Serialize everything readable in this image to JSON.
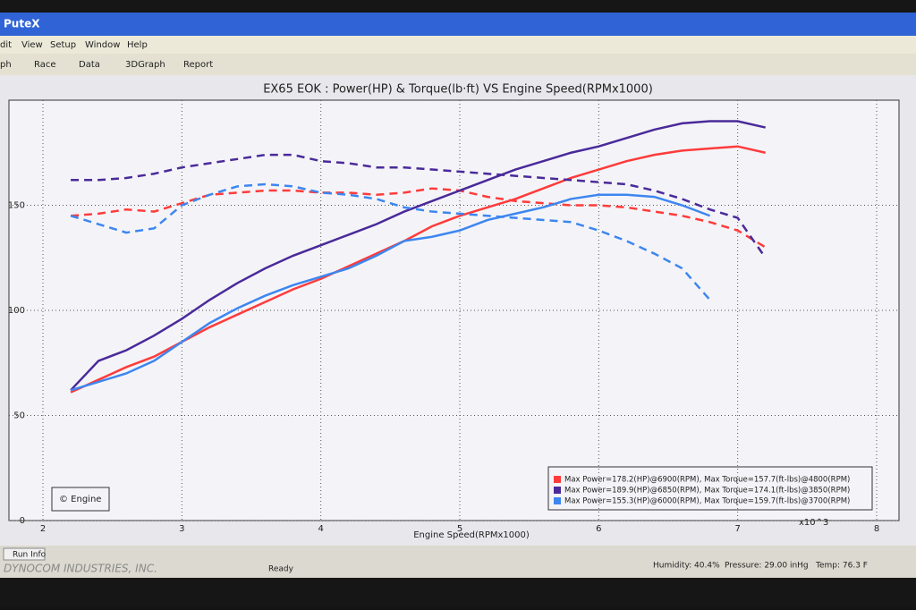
{
  "window": {
    "title": "PuteX",
    "menu": [
      "dit",
      "View",
      "Setup",
      "Window",
      "Help"
    ],
    "toolbar": [
      "ph",
      "Race",
      "Data",
      "3DGraph",
      "Report"
    ]
  },
  "chart_data": {
    "type": "line",
    "title": "EX65 EOK : Power(HP) & Torque(lb·ft) VS Engine Speed(RPMx1000)",
    "x_label": "Engine Speed(RPMx1000)",
    "x_multiplier": "x10^3",
    "watermark": "© Engine",
    "xlim": [
      2,
      8
    ],
    "xticks": [
      2,
      3,
      4,
      5,
      6,
      7,
      8
    ],
    "ylim": [
      0,
      200
    ],
    "yticks": [
      0,
      50,
      100,
      150
    ],
    "grid": true,
    "legend": "lower right",
    "x": [
      2.2,
      2.4,
      2.6,
      2.8,
      3.0,
      3.2,
      3.4,
      3.6,
      3.8,
      4.0,
      4.2,
      4.4,
      4.6,
      4.8,
      5.0,
      5.2,
      5.4,
      5.6,
      5.8,
      6.0,
      6.2,
      6.4,
      6.6,
      6.8,
      7.0,
      7.2
    ],
    "series": [
      {
        "name": "Max Power=178.2(HP)@6900(RPM), Max Torque=157.7(ft-lbs)@4800(RPM)",
        "color": "#ff3b3b",
        "values": [
          61,
          67,
          73,
          78,
          85,
          92,
          98,
          104,
          110,
          115,
          121,
          127,
          133,
          140,
          145,
          149,
          153,
          158,
          163,
          167,
          171,
          174,
          176,
          177,
          178,
          175
        ],
        "torque": [
          145,
          146,
          148,
          147,
          151,
          155,
          156,
          157,
          157,
          156,
          156,
          155,
          156,
          158,
          157,
          154,
          152,
          151,
          150,
          150,
          149,
          147,
          145,
          142,
          138,
          130
        ]
      },
      {
        "name": "Max Power=189.9(HP)@6850(RPM), Max Torque=174.1(ft-lbs)@3850(RPM)",
        "color": "#4a2a9a",
        "values": [
          62,
          76,
          81,
          88,
          96,
          105,
          113,
          120,
          126,
          131,
          136,
          141,
          147,
          152,
          157,
          162,
          167,
          171,
          175,
          178,
          182,
          186,
          189,
          190,
          190,
          187
        ],
        "torque": [
          162,
          162,
          163,
          165,
          168,
          170,
          172,
          174,
          174,
          171,
          170,
          168,
          168,
          167,
          166,
          165,
          164,
          163,
          162,
          161,
          160,
          157,
          153,
          148,
          144,
          125
        ]
      },
      {
        "name": "Max Power=155.3(HP)@6000(RPM), Max Torque=159.7(ft-lbs)@3700(RPM)",
        "color": "#3d86f0",
        "values": [
          62,
          66,
          70,
          76,
          85,
          94,
          101,
          107,
          112,
          116,
          120,
          126,
          133,
          135,
          138,
          143,
          146,
          149,
          153,
          155,
          155,
          154,
          150,
          145,
          null,
          null
        ],
        "torque": [
          145,
          141,
          137,
          139,
          150,
          155,
          159,
          160,
          159,
          156,
          155,
          153,
          149,
          147,
          146,
          145,
          144,
          143,
          142,
          138,
          133,
          127,
          120,
          105,
          null,
          null
        ]
      }
    ]
  },
  "status": {
    "tab": "Run Info",
    "brand": "DYNOCOM INDUSTRIES, INC.",
    "state": "Ready",
    "humidity": "Humidity: 40.4%",
    "pressure": "Pressure: 29.00 inHg",
    "temp": "Temp: 76.3 F"
  }
}
